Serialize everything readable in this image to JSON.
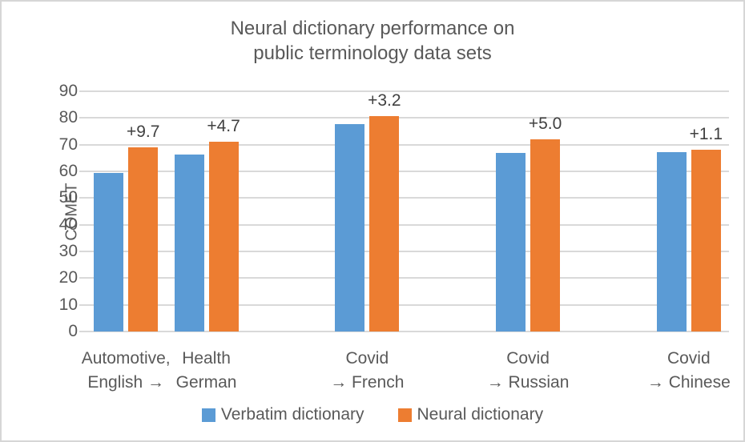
{
  "chart_data": {
    "type": "bar",
    "title_lines": [
      "Neural dictionary performance on",
      "public terminology data sets"
    ],
    "ylabel": "COMET",
    "ylim": [
      0,
      90
    ],
    "yticks": [
      0,
      10,
      20,
      30,
      40,
      50,
      60,
      70,
      80,
      90
    ],
    "grid": true,
    "legend_position": "bottom",
    "categories": [
      "Automotive,\nEnglish →",
      "Health\nGerman",
      "Covid\n→ French",
      "Covid\n→ Russian",
      "Covid\n→ Chinese"
    ],
    "category_slots": [
      0,
      1,
      3,
      5,
      7
    ],
    "total_slots": 8,
    "series": [
      {
        "name": "Verbatim dictionary",
        "color": "#5B9BD5",
        "values": [
          59.3,
          66.4,
          77.6,
          67.0,
          67.1
        ]
      },
      {
        "name": "Neural dictionary",
        "color": "#ED7D31",
        "values": [
          69.0,
          71.1,
          80.8,
          72.0,
          68.2
        ]
      }
    ],
    "data_labels": [
      "+9.7",
      "+4.7",
      "+3.2",
      "+5.0",
      "+1.1"
    ],
    "colors": {
      "grid": "#d9d9d9",
      "axis_text": "#595959",
      "data_label_text": "#404040"
    }
  }
}
